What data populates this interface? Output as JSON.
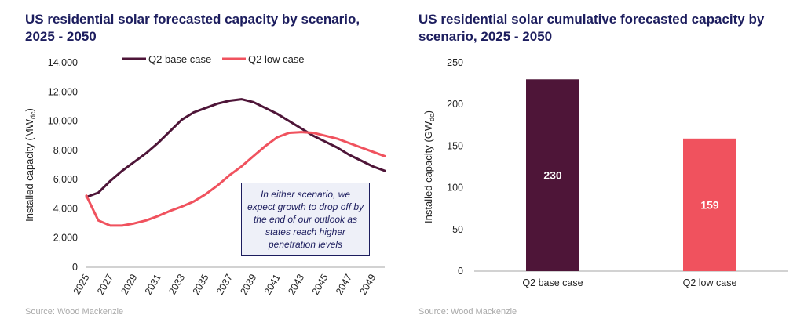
{
  "colors": {
    "base": "#4e1538",
    "low": "#f0525e",
    "title": "#1c1d5e",
    "axis": "#a6a6a6"
  },
  "left_title": "US residential solar forecasted capacity by scenario, 2025 - 2050",
  "right_title": "US residential solar cumulative forecasted capacity by scenario, 2025 - 2050",
  "source_left": "Source: Wood Mackenzie",
  "source_right": "Source: Wood Mackenzie",
  "annotation": "In either scenario, we expect growth to drop off by the end of our outlook as states reach higher penetration levels",
  "chart_data": [
    {
      "type": "line",
      "title": "US residential solar forecasted capacity by scenario, 2025 - 2050",
      "xlabel": "",
      "ylabel": "Installed capacity (MWdc)",
      "ylabel_main": "Installed capacity (MW",
      "ylabel_sub": "dc",
      "ylabel_end": ")",
      "ylim": [
        0,
        14000
      ],
      "yticks": [
        "0",
        "2,000",
        "4,000",
        "6,000",
        "8,000",
        "10,000",
        "12,000",
        "14,000"
      ],
      "x": [
        2025,
        2026,
        2027,
        2028,
        2029,
        2030,
        2031,
        2032,
        2033,
        2034,
        2035,
        2036,
        2037,
        2038,
        2039,
        2040,
        2041,
        2042,
        2043,
        2044,
        2045,
        2046,
        2047,
        2048,
        2049,
        2050
      ],
      "xticks": [
        "2025",
        "2027",
        "2029",
        "2031",
        "2033",
        "2035",
        "2037",
        "2039",
        "2041",
        "2043",
        "2045",
        "2047",
        "2049"
      ],
      "legend": "top",
      "series": [
        {
          "name": "Q2 base case",
          "values": [
            4800,
            5100,
            5900,
            6600,
            7200,
            7800,
            8500,
            9300,
            10100,
            10600,
            10900,
            11200,
            11400,
            11500,
            11300,
            10900,
            10500,
            10000,
            9500,
            9000,
            8600,
            8200,
            7700,
            7300,
            6900,
            6600
          ]
        },
        {
          "name": "Q2 low case",
          "values": [
            4900,
            3200,
            2850,
            2850,
            3000,
            3200,
            3500,
            3850,
            4150,
            4500,
            5000,
            5600,
            6300,
            6900,
            7600,
            8300,
            8900,
            9200,
            9250,
            9200,
            9000,
            8800,
            8500,
            8200,
            7900,
            7600
          ]
        }
      ]
    },
    {
      "type": "bar",
      "title": "US residential solar cumulative forecasted capacity by scenario, 2025 - 2050",
      "ylabel": "Installed capacity (GWdc)",
      "ylabel_main": "Installed capacity (GW",
      "ylabel_sub": "dc",
      "ylabel_end": ")",
      "ylim": [
        0,
        250
      ],
      "yticks": [
        "0",
        "50",
        "100",
        "150",
        "200",
        "250"
      ],
      "categories": [
        "Q2 base case",
        "Q2 low case"
      ],
      "values": [
        230,
        159
      ],
      "value_labels": [
        "230",
        "159"
      ]
    }
  ]
}
